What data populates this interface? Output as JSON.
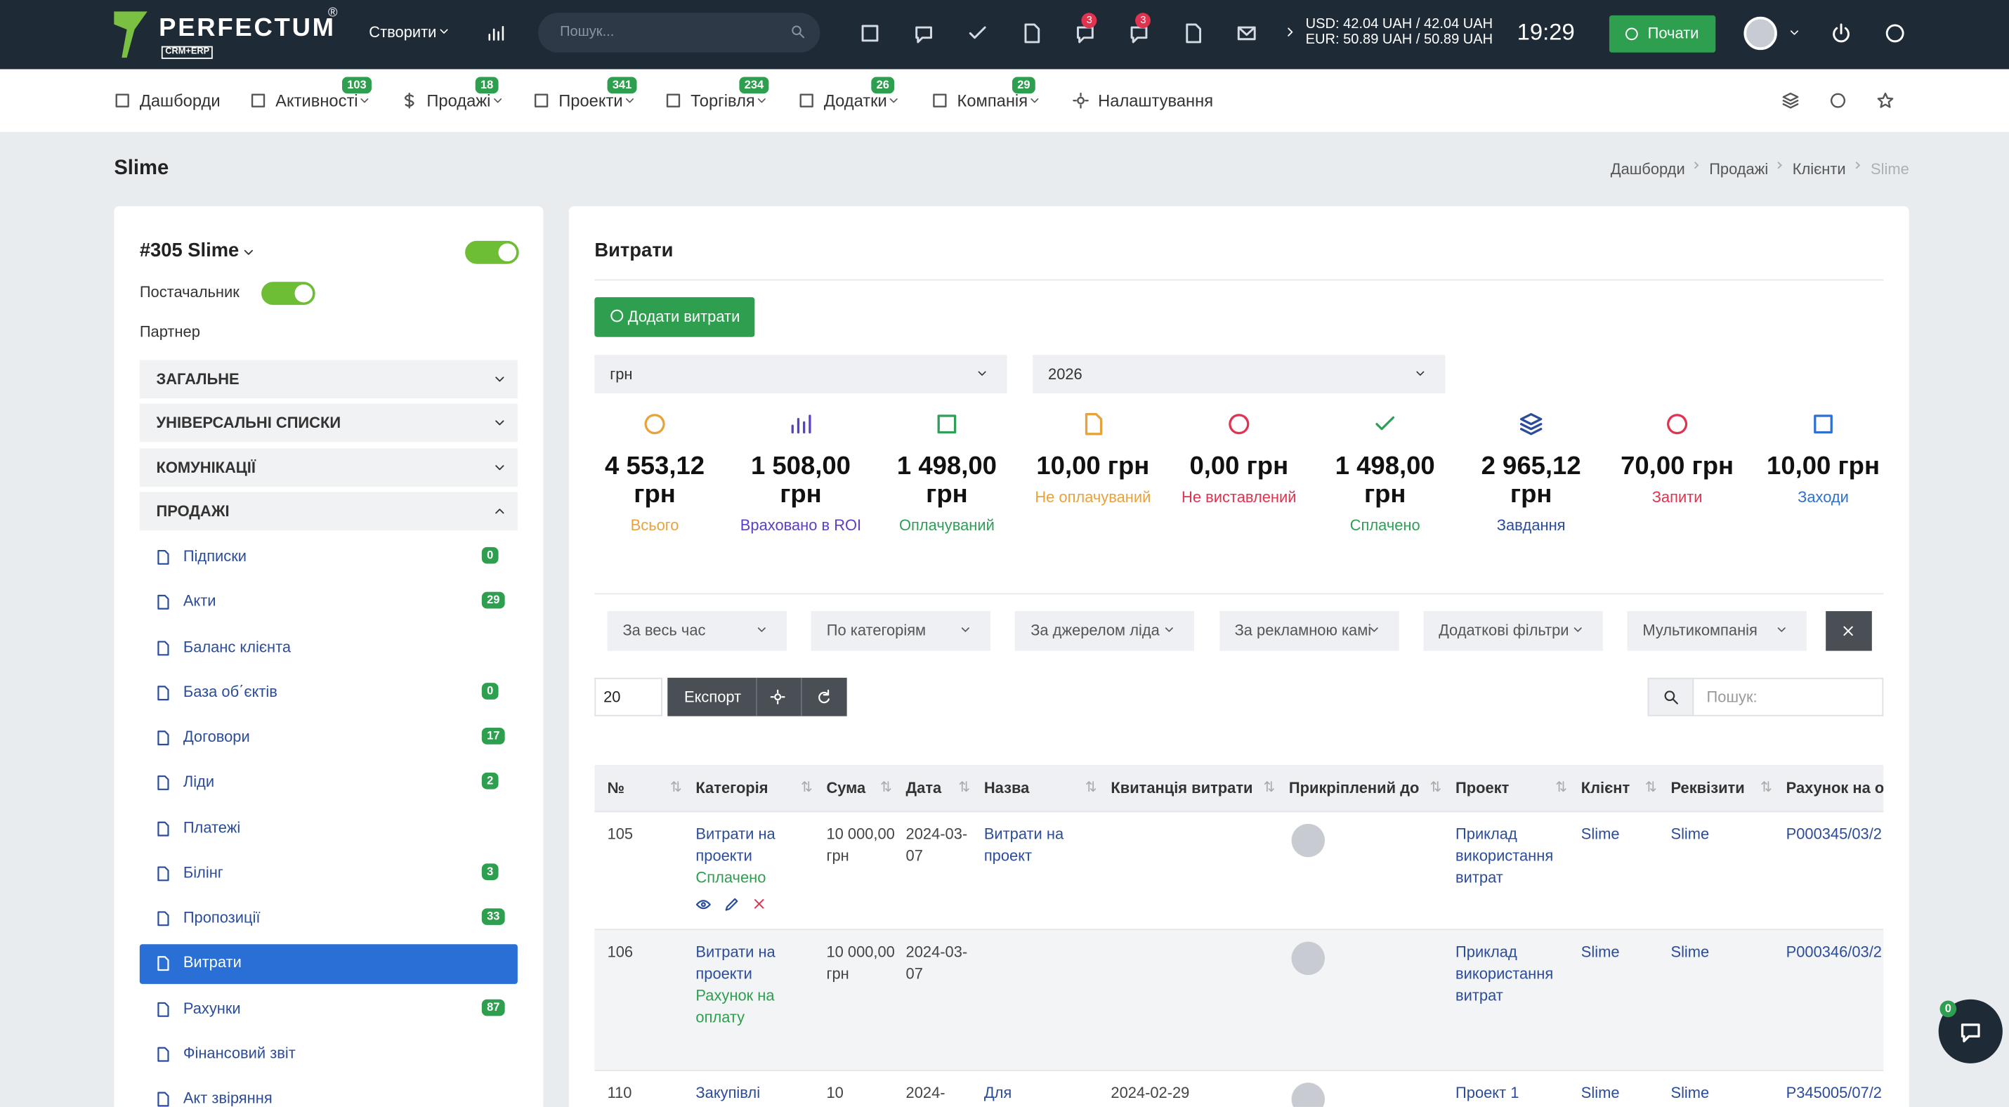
{
  "topbar": {
    "logo": "PERFECTUM",
    "logo_mark": "®",
    "logo_sub": "CRM+ERP",
    "create": "Створити",
    "search_placeholder": "Пошук...",
    "badges": [
      "3",
      "3"
    ],
    "rates": [
      "USD: 42.04 UAH / 42.04 UAH",
      "EUR: 50.89 UAH / 50.89 UAH"
    ],
    "time": "19:29",
    "start": "Почати"
  },
  "menu": [
    {
      "label": "Дашборди"
    },
    {
      "label": "Активності",
      "badge": "103"
    },
    {
      "label": "Продажі",
      "badge": "18"
    },
    {
      "label": "Проекти",
      "badge": "341"
    },
    {
      "label": "Торгівля",
      "badge": "234"
    },
    {
      "label": "Додатки",
      "badge": "26"
    },
    {
      "label": "Компанія",
      "badge": "29"
    },
    {
      "label": "Налаштування"
    }
  ],
  "page_title": "Slime",
  "breadcrumbs": [
    "Дашборди",
    "Продажі",
    "Клієнти",
    "Slime"
  ],
  "sidebar": {
    "title": "#305 Slime",
    "supplier": "Постачальник",
    "partner": "Партнер",
    "sections": [
      "ЗАГАЛЬНЕ",
      "УНІВЕРСАЛЬНІ СПИСКИ",
      "КОМУНІКАЦІЇ",
      "ПРОДАЖІ"
    ],
    "items": [
      {
        "label": "Підписки",
        "badge": "0"
      },
      {
        "label": "Акти",
        "badge": "29"
      },
      {
        "label": "Баланс клієнта"
      },
      {
        "label": "База об΄єктів",
        "badge": "0"
      },
      {
        "label": "Договори",
        "badge": "17"
      },
      {
        "label": "Ліди",
        "badge": "2"
      },
      {
        "label": "Платежі"
      },
      {
        "label": "Білінг",
        "badge": "3"
      },
      {
        "label": "Пропозиції",
        "badge": "33"
      },
      {
        "label": "Витрати",
        "active": true
      },
      {
        "label": "Рахунки",
        "badge": "87"
      },
      {
        "label": "Фінансовий звіт"
      },
      {
        "label": "Акт звіряння"
      }
    ]
  },
  "content": {
    "title": "Витрати",
    "add_button": "Додати витрати",
    "currency": "грн",
    "year": "2026",
    "stats": [
      {
        "value": "4 553,12 грн",
        "label": "Всього",
        "color": "#e8a23a"
      },
      {
        "value": "1 508,00 грн",
        "label": "Враховано в ROI",
        "color": "#5b3fc4"
      },
      {
        "value": "1 498,00 грн",
        "label": "Оплачуваний",
        "color": "#2f9e57"
      },
      {
        "value": "10,00 грн",
        "label": "Не оплачуваний",
        "color": "#e8a23a"
      },
      {
        "value": "0,00 грн",
        "label": "Не виставлений",
        "color": "#e0334f"
      },
      {
        "value": "1 498,00 грн",
        "label": "Сплачено",
        "color": "#2f9e57"
      },
      {
        "value": "2 965,12 грн",
        "label": "Завдання",
        "color": "#2b4c9b"
      },
      {
        "value": "70,00 грн",
        "label": "Запити",
        "color": "#e0334f"
      },
      {
        "value": "10,00 грн",
        "label": "Заходи",
        "color": "#2f6fd0"
      }
    ],
    "filters": [
      "За весь час",
      "По категоріям",
      "За джерелом ліда",
      "За рекламною камі",
      "Додаткові фільтри",
      "Мультикомпанія"
    ],
    "page_size": "20",
    "export": "Експорт",
    "search_placeholder": "Пошук:",
    "columns": [
      "№",
      "Категорія",
      "Сума",
      "Дата",
      "Назва",
      "Квитанція витрати",
      "Прикріплений до",
      "Проект",
      "Клієнт",
      "Реквізити",
      "Рахунок на оп"
    ],
    "rows": [
      {
        "id": "105",
        "category": "Витрати на проекти",
        "status": "Сплачено",
        "amount": "10 000,00 грн",
        "date": "2024-03-07",
        "name": "Витрати на проект",
        "project": "Приклад використання витрат",
        "client": "Slime",
        "requisites": "Slime",
        "invoice": "P000345/03/2"
      },
      {
        "id": "106",
        "category": "Витрати на проекти",
        "status": "Рахунок на оплату",
        "amount": "10 000,00 грн",
        "date": "2024-03-07",
        "project": "Приклад використання витрат",
        "client": "Slime",
        "requisites": "Slime",
        "invoice": "P000346/03/2"
      },
      {
        "id": "110",
        "category": "Закупівлі",
        "amount": "10",
        "date": "2024-",
        "name": "Для",
        "receipt": "2024-02-29",
        "project": "Проект 1",
        "client": "Slime",
        "requisites": "Slime",
        "invoice": "P345005/07/2"
      }
    ]
  },
  "chat_badge": "0"
}
